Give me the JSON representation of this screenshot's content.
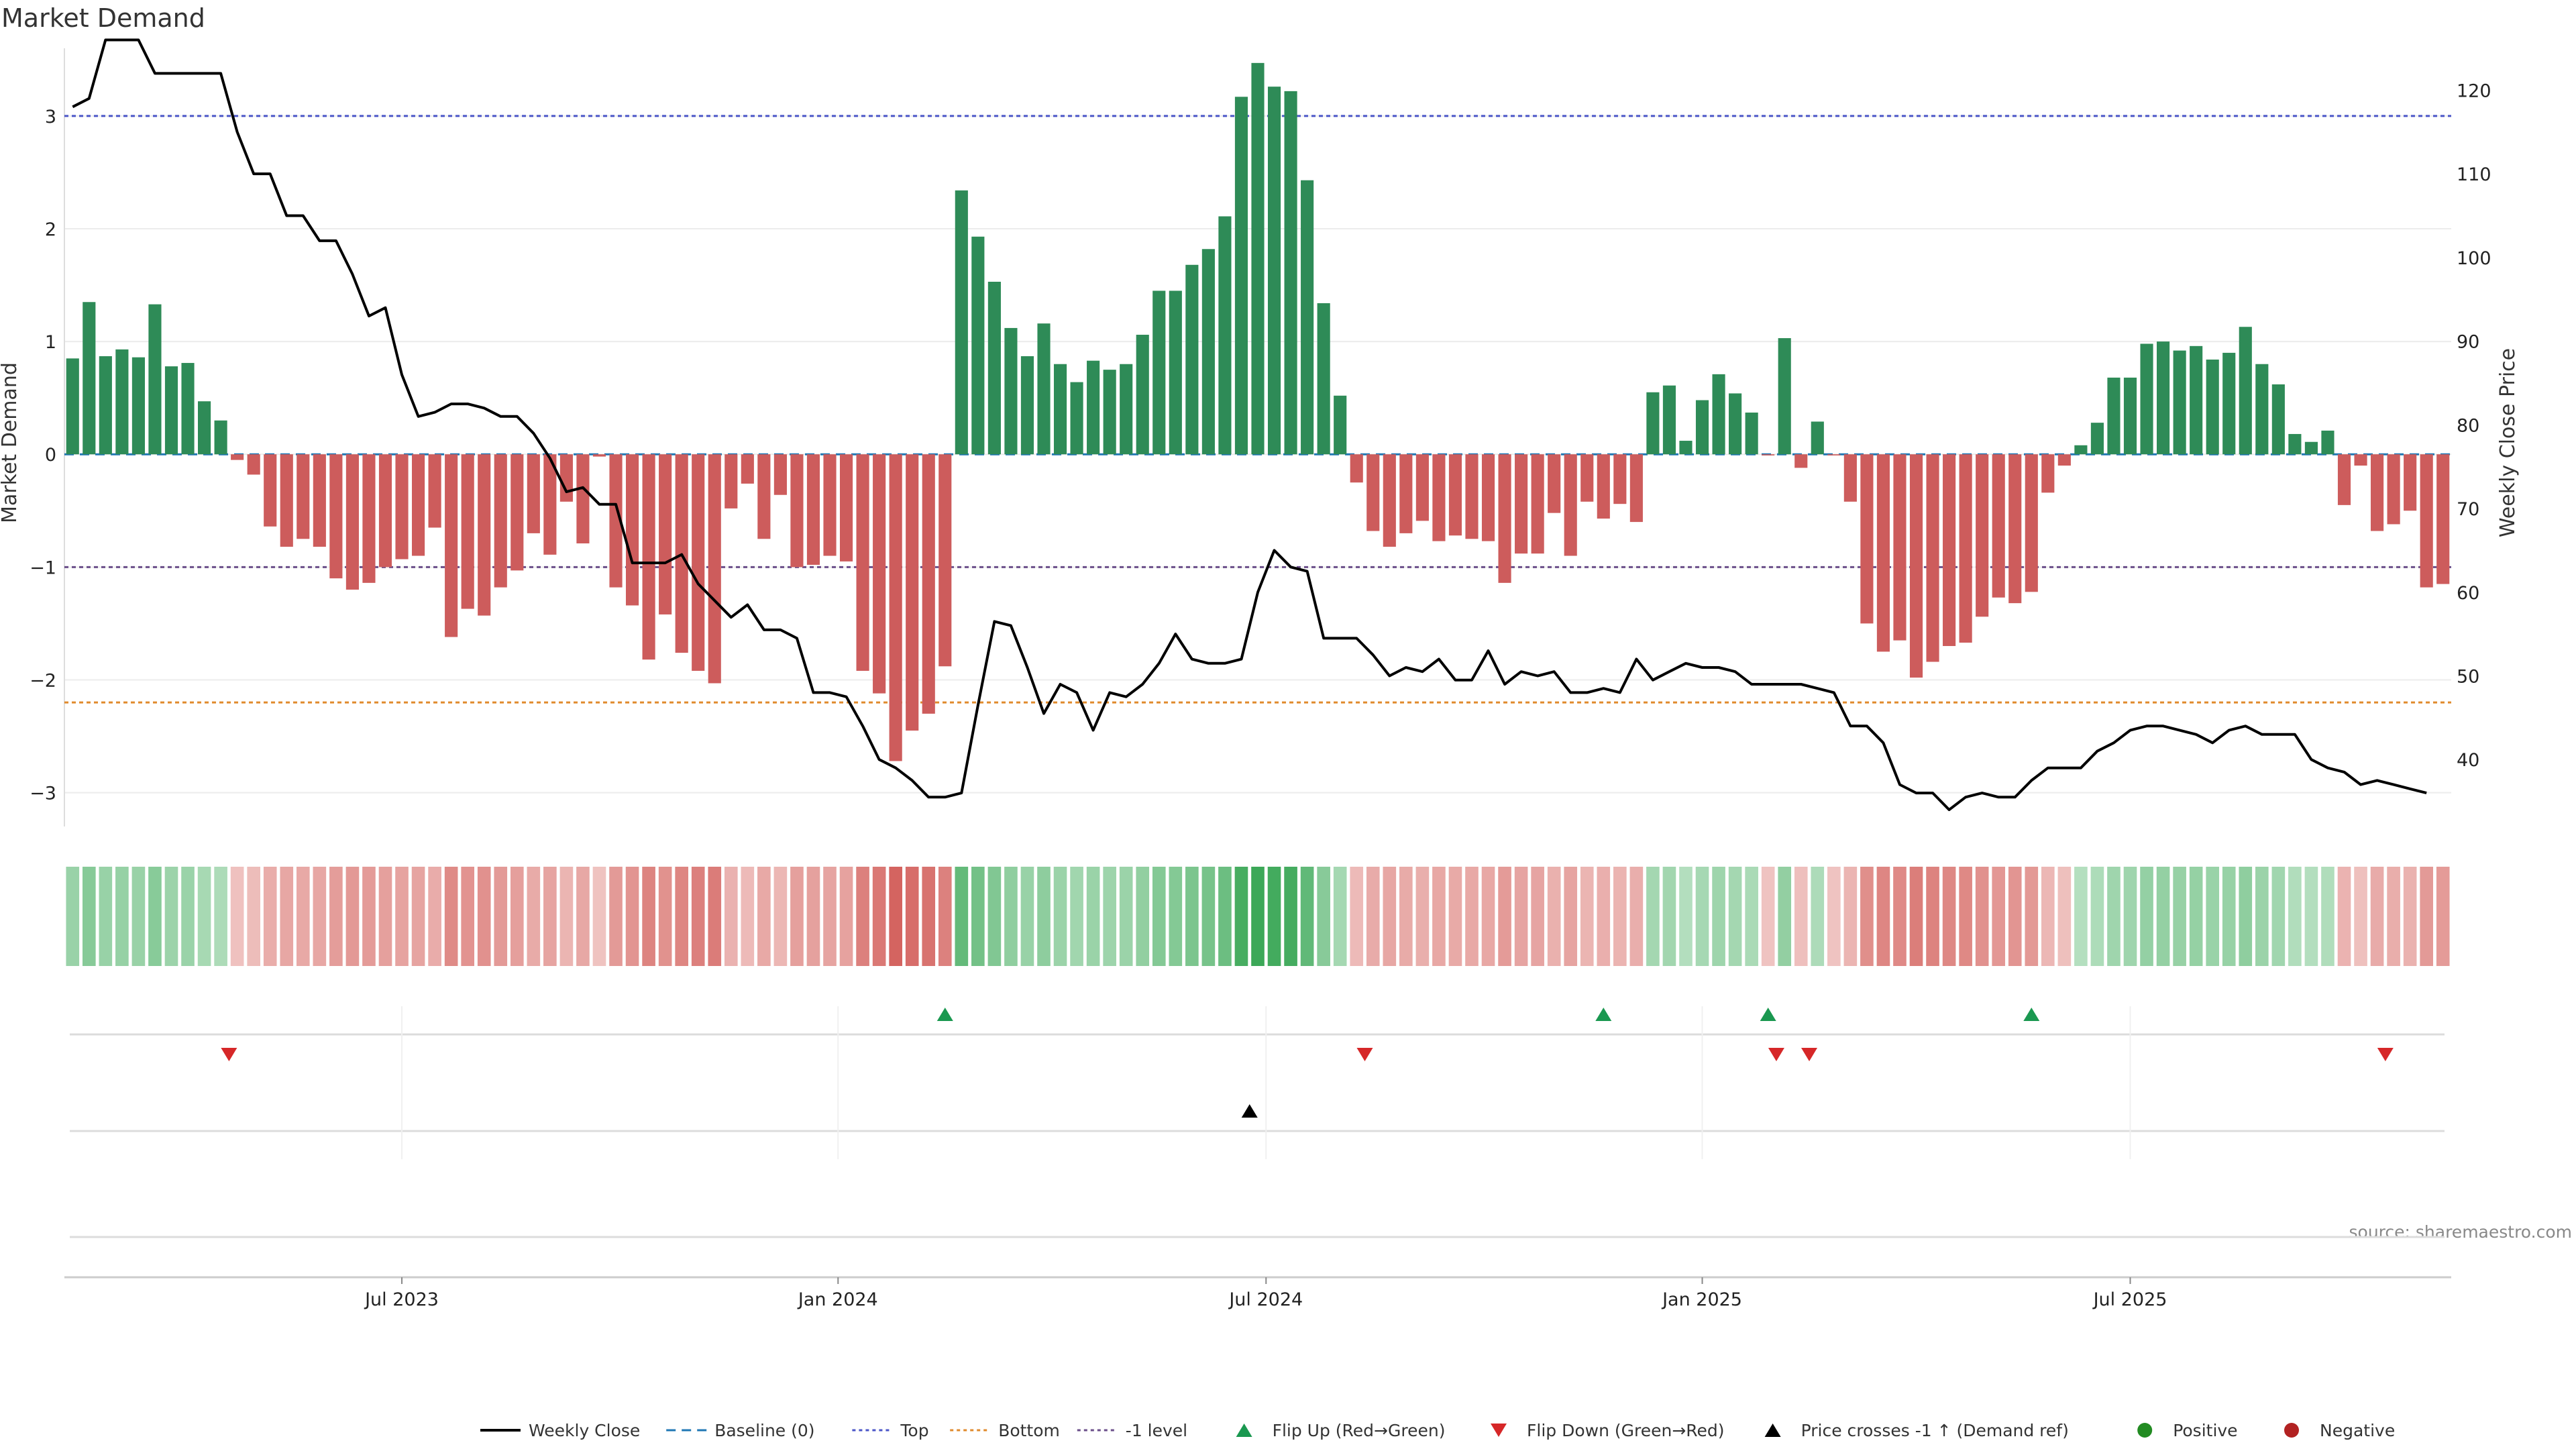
{
  "chart_data": {
    "type": "bar",
    "title": "Market Demand",
    "ylabel": "Market Demand",
    "y2label": "Weekly Close Price",
    "ylim": [
      -3.3,
      3.6
    ],
    "y2lim": [
      32,
      125
    ],
    "yticks": [
      -3,
      -2,
      -1,
      0,
      1,
      2,
      3
    ],
    "y2ticks": [
      40,
      50,
      60,
      70,
      80,
      90,
      100,
      110,
      120
    ],
    "levels": {
      "top": 3.0,
      "bottom": -2.2,
      "minus_one": -1.0,
      "baseline": 0
    },
    "xticks": [
      {
        "label": "Jul 2023",
        "week": 20.5
      },
      {
        "label": "Jan 2024",
        "week": 47
      },
      {
        "label": "Jul 2024",
        "week": 73
      },
      {
        "label": "Jan 2025",
        "week": 99.5
      },
      {
        "label": "Jul 2025",
        "week": 125.5
      }
    ],
    "demand": [
      0.85,
      1.35,
      0.87,
      0.93,
      0.86,
      1.33,
      0.78,
      0.81,
      0.47,
      0.3,
      -0.05,
      -0.18,
      -0.64,
      -0.82,
      -0.75,
      -0.82,
      -1.1,
      -1.2,
      -1.14,
      -1.0,
      -0.93,
      -0.9,
      -0.65,
      -1.62,
      -1.37,
      -1.43,
      -1.18,
      -1.03,
      -0.7,
      -0.89,
      -0.42,
      -0.79,
      -0.02,
      -1.18,
      -1.34,
      -1.82,
      -1.42,
      -1.76,
      -1.92,
      -2.03,
      -0.48,
      -0.26,
      -0.75,
      -0.36,
      -1.0,
      -0.98,
      -0.9,
      -0.95,
      -1.92,
      -2.12,
      -2.72,
      -2.45,
      -2.3,
      -1.88,
      2.34,
      1.93,
      1.53,
      1.12,
      0.87,
      1.16,
      0.8,
      0.64,
      0.83,
      0.75,
      0.8,
      1.06,
      1.45,
      1.45,
      1.68,
      1.82,
      2.11,
      3.17,
      3.47,
      3.26,
      3.22,
      2.43,
      1.34,
      0.52,
      -0.25,
      -0.68,
      -0.82,
      -0.7,
      -0.59,
      -0.77,
      -0.72,
      -0.75,
      -0.77,
      -1.14,
      -0.88,
      -0.88,
      -0.52,
      -0.9,
      -0.42,
      -0.57,
      -0.44,
      -0.6,
      0.55,
      0.61,
      0.12,
      0.48,
      0.71,
      0.54,
      0.37,
      -0.01,
      1.03,
      -0.12,
      0.29,
      -0.01,
      -0.42,
      -1.5,
      -1.75,
      -1.65,
      -1.98,
      -1.84,
      -1.7,
      -1.67,
      -1.44,
      -1.27,
      -1.32,
      -1.22,
      -0.34,
      -0.1,
      0.08,
      0.28,
      0.68,
      0.68,
      0.98,
      1.0,
      0.92,
      0.96,
      0.84,
      0.9,
      1.13,
      0.8,
      0.62,
      0.18,
      0.11,
      0.21,
      -0.45,
      -0.1,
      -0.68,
      -0.62,
      -0.5,
      -1.18,
      -1.15
    ],
    "price": [
      118,
      119,
      126,
      126,
      126,
      122,
      122,
      122,
      122,
      122,
      115,
      110,
      110,
      105,
      105,
      102,
      102,
      98,
      93,
      94,
      86,
      81,
      81.5,
      82.5,
      82.5,
      82,
      81,
      81,
      79,
      76,
      72,
      72.5,
      70.5,
      70.5,
      63.5,
      63.5,
      63.5,
      64.5,
      61,
      59,
      57,
      58.5,
      55.5,
      55.5,
      54.5,
      48,
      48,
      47.5,
      44,
      40,
      39,
      37.5,
      35.5,
      35.5,
      36,
      46.5,
      56.5,
      56,
      51,
      45.5,
      49,
      48,
      43.5,
      48,
      47.5,
      49,
      51.5,
      55,
      52,
      51.5,
      51.5,
      52,
      60,
      65,
      63,
      62.5,
      54.5,
      54.5,
      54.5,
      52.5,
      50,
      51,
      50.5,
      52,
      49.5,
      49.5,
      53,
      49,
      50.5,
      50,
      50.5,
      48,
      48,
      48.5,
      48,
      52,
      49.5,
      50.5,
      51.5,
      51,
      51,
      50.5,
      49,
      49,
      49,
      49,
      48.5,
      48,
      44,
      44,
      42,
      37,
      36,
      36,
      34,
      35.5,
      36,
      35.5,
      35.5,
      37.5,
      39,
      39,
      39,
      41,
      42,
      43.5,
      44,
      44,
      43.5,
      43,
      42,
      43.5,
      44,
      43,
      43,
      43,
      40,
      39,
      38.5,
      37,
      37.5,
      37,
      36.5,
      36
    ],
    "flip_up_weeks": [
      53.5,
      93.5,
      103.5,
      119.5
    ],
    "flip_down_weeks": [
      10,
      79,
      104,
      106,
      141
    ],
    "price_cross_weeks": [
      72
    ],
    "legend": [
      {
        "label": "Weekly Close",
        "kind": "line",
        "color": "#000000"
      },
      {
        "label": "Baseline (0)",
        "kind": "dash",
        "color": "#1f77b4"
      },
      {
        "label": "Top",
        "kind": "dot",
        "color": "#4b56c8"
      },
      {
        "label": "Bottom",
        "kind": "dot",
        "color": "#e08a2c"
      },
      {
        "label": "-1 level",
        "kind": "dot",
        "color": "#6b4f8a"
      },
      {
        "label": "Flip Up (Red→Green)",
        "kind": "tri-up",
        "color": "#1a9850"
      },
      {
        "label": "Flip Down (Green→Red)",
        "kind": "tri-down",
        "color": "#d62728"
      },
      {
        "label": "Price crosses -1 ↑ (Demand ref)",
        "kind": "tri-up",
        "color": "#000000"
      },
      {
        "label": "Positive",
        "kind": "dot-marker",
        "color": "#228b22"
      },
      {
        "label": "Negative",
        "kind": "dot-marker",
        "color": "#b22222"
      }
    ],
    "source": "source: sharemaestro.com",
    "colors": {
      "positive": "#2e8b57",
      "negative": "#cd5c5c",
      "price": "#000000"
    }
  }
}
